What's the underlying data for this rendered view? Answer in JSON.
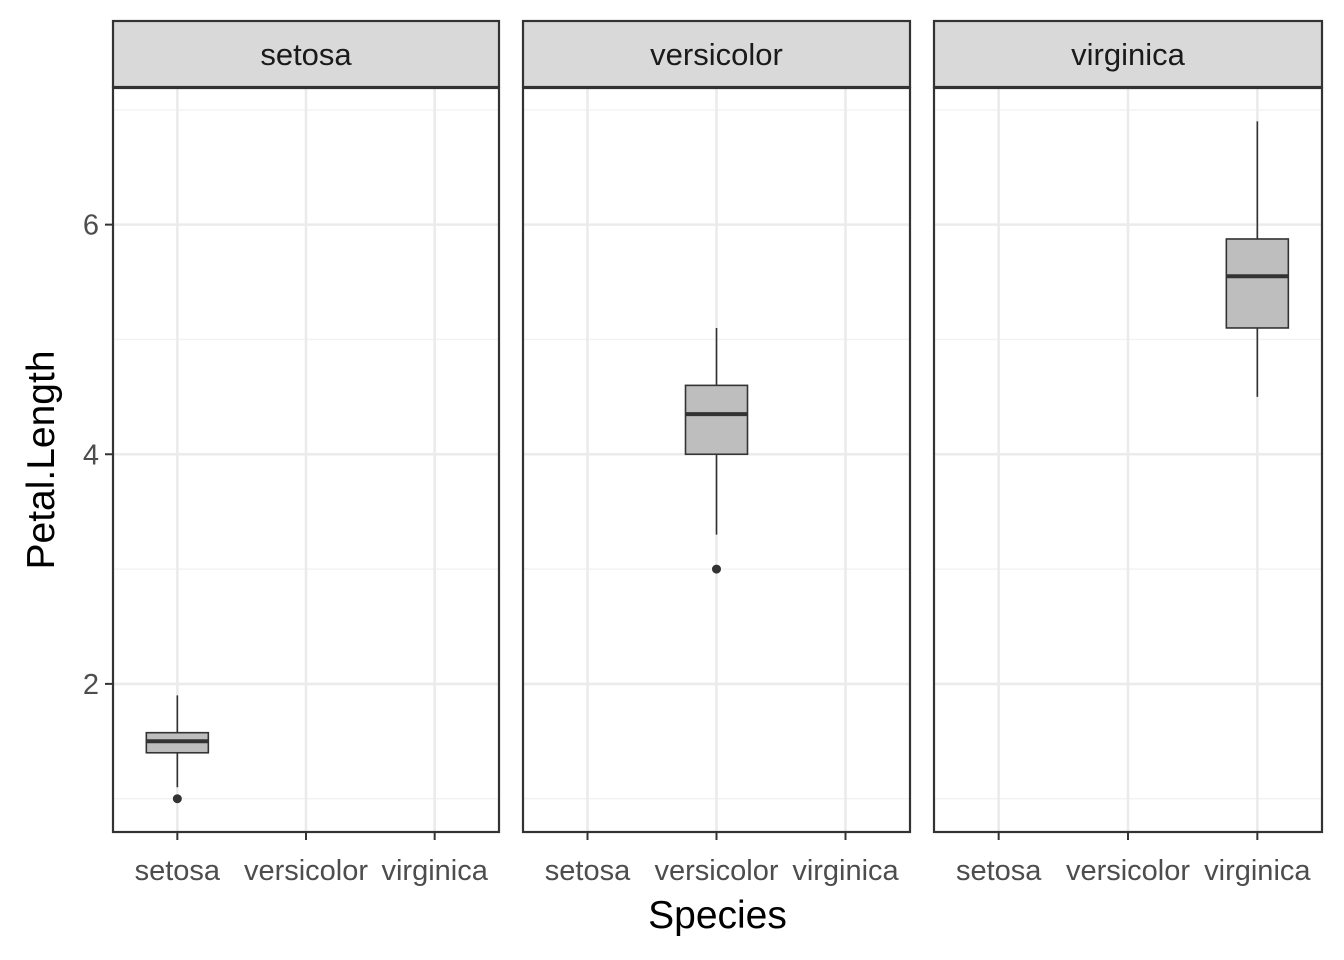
{
  "chart_data": {
    "type": "boxplot",
    "facet_by": "Species",
    "panels": [
      "setosa",
      "versicolor",
      "virginica"
    ],
    "categories": [
      "setosa",
      "versicolor",
      "virginica"
    ],
    "xlabel": "Species",
    "ylabel": "Petal.Length",
    "ylim": [
      0.71,
      7.19
    ],
    "yticks": [
      2,
      4,
      6
    ],
    "grid": true,
    "boxes": [
      {
        "panel": "setosa",
        "category": "setosa",
        "lower_whisker": 1.1,
        "q1": 1.4,
        "median": 1.5,
        "q3": 1.575,
        "upper_whisker": 1.9,
        "outliers": [
          1.0
        ]
      },
      {
        "panel": "versicolor",
        "category": "versicolor",
        "lower_whisker": 3.3,
        "q1": 4.0,
        "median": 4.35,
        "q3": 4.6,
        "upper_whisker": 5.1,
        "outliers": [
          3.0
        ]
      },
      {
        "panel": "virginica",
        "category": "virginica",
        "lower_whisker": 4.5,
        "q1": 5.1,
        "median": 5.55,
        "q3": 5.875,
        "upper_whisker": 6.9,
        "outliers": []
      }
    ],
    "colors": {
      "box_fill": "#bebebe",
      "line": "#333333",
      "strip_fill": "#d9d9d9",
      "grid_major": "#ebebeb",
      "grid_minor": "#f2f2f2",
      "panel_border": "#333333"
    }
  }
}
